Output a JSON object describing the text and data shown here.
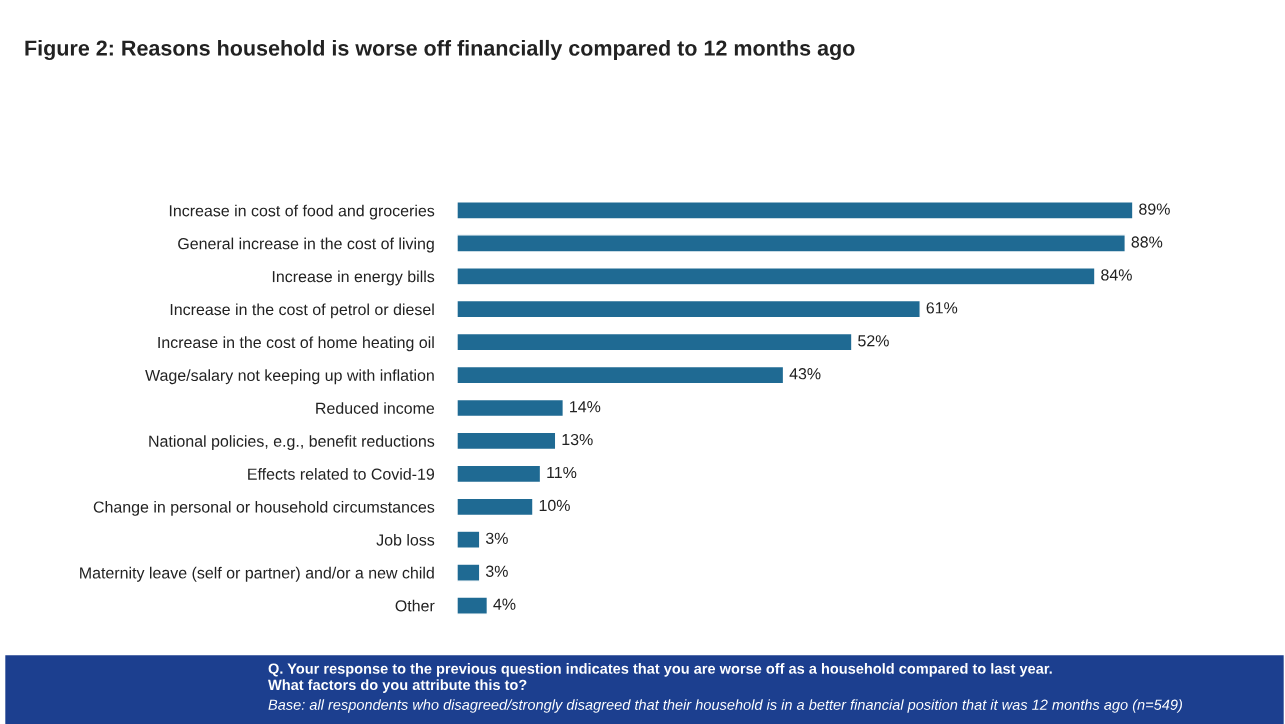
{
  "chart_data": {
    "type": "bar",
    "orientation": "horizontal",
    "title": "Figure 2: Reasons household is worse off financially compared to 12 months ago",
    "categories": [
      "Increase in cost of food and groceries",
      "General increase in the cost of living",
      "Increase in energy bills",
      "Increase in the cost of petrol or diesel",
      "Increase in the cost of home heating oil",
      "Wage/salary not keeping up with inflation",
      "Reduced income",
      "National policies, e.g., benefit reductions",
      "Effects related to Covid-19",
      "Change in personal or household circumstances",
      "Job loss",
      "Maternity leave (self or partner) and/or a new child",
      "Other"
    ],
    "values": [
      89,
      88,
      84,
      61,
      52,
      43,
      14,
      13,
      11,
      10,
      3,
      3,
      4
    ],
    "color": "#1f6a93",
    "value_labels": [
      "89%",
      "88%",
      "84%",
      "61%",
      "52%",
      "43%",
      "14%",
      "13%",
      "11%",
      "10%",
      "3%",
      "3%",
      "4%"
    ],
    "tick_labels": "y",
    "grid": false,
    "legend": false,
    "annotations": [
      "Q. Your response to the previous question indicates that you are worse off as a household compared to last year.\nWhat factors do you attribute this to?",
      "Base: all respondents who disagreed/strongly disagreed that their household is in a better financial position that it was 12 months ago (n=549)"
    ]
  }
}
